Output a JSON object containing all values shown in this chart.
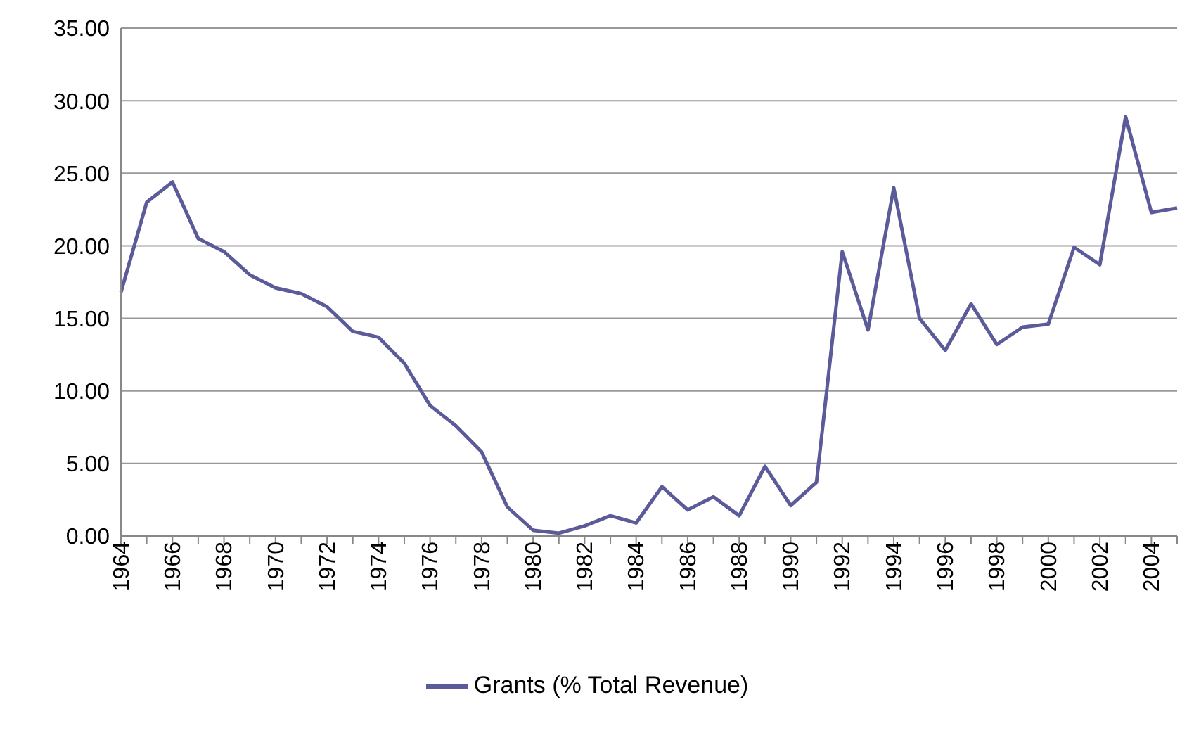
{
  "chart_data": {
    "type": "line",
    "categories": [
      "1964",
      null,
      "1966",
      null,
      "1968",
      null,
      "1970",
      null,
      "1972",
      null,
      "1974",
      null,
      "1976",
      null,
      "1978",
      null,
      "1980",
      null,
      "1982",
      null,
      "1984",
      null,
      "1986",
      null,
      "1988",
      null,
      "1990",
      null,
      "1992",
      null,
      "1994",
      null,
      "1996",
      null,
      "1998",
      null,
      "2000",
      null,
      "2002",
      null,
      "2004",
      null
    ],
    "series": [
      {
        "name": "Grants (% Total Revenue)",
        "color": "#5b5b9a",
        "values": [
          16.8,
          23.0,
          24.4,
          20.5,
          19.6,
          18.0,
          17.1,
          16.7,
          15.8,
          14.1,
          13.7,
          11.9,
          9.0,
          7.6,
          5.8,
          2.0,
          0.4,
          0.2,
          0.7,
          1.4,
          0.9,
          3.4,
          1.8,
          2.7,
          1.4,
          4.8,
          2.1,
          3.7,
          19.6,
          14.2,
          24.0,
          15.0,
          12.8,
          16.0,
          13.2,
          14.4,
          14.6,
          19.9,
          18.7,
          28.9,
          22.3,
          22.6
        ]
      }
    ],
    "ylim": [
      0,
      35
    ],
    "yticks": [
      {
        "value": 0,
        "label": "0.00"
      },
      {
        "value": 5,
        "label": "5.00"
      },
      {
        "value": 10,
        "label": "10.00"
      },
      {
        "value": 15,
        "label": "15.00"
      },
      {
        "value": 20,
        "label": "20.00"
      },
      {
        "value": 25,
        "label": "25.00"
      },
      {
        "value": 30,
        "label": "30.00"
      },
      {
        "value": 35,
        "label": "35.00"
      }
    ],
    "grid": "y",
    "legend": "bottom",
    "marker": "none",
    "line_style": "solid"
  }
}
